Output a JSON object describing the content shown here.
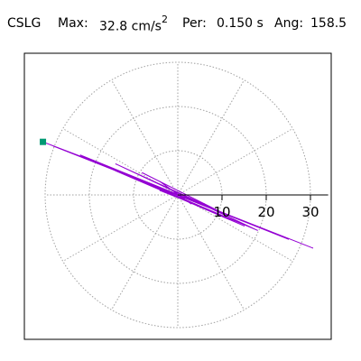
{
  "header": {
    "station": "CSLG",
    "max_label": "Max:",
    "max_value": "32.8 cm/s",
    "max_unit_sup": "2",
    "per_label": "Per:",
    "per_value": "0.150 s",
    "ang_label": "Ang:",
    "ang_value": "158.5"
  },
  "chart_data": {
    "type": "scatter",
    "title": "CSLG",
    "subtitle": "Max: 32.8 cm/s2 Per: 0.150 s Ang: 158.5",
    "xlabel": "",
    "ylabel": "",
    "radial_ticks": [
      10,
      20,
      30
    ],
    "radial_tick_labels": [
      "10",
      "20",
      "30"
    ],
    "radial_range": [
      0,
      34
    ],
    "angular_gridline_step_deg": 30,
    "grid": true,
    "max_amplitude": 32.8,
    "max_angle_deg": 158.5,
    "series": [
      {
        "style": "line",
        "color": "#9400d3",
        "points": [
          [
            0,
            0
          ],
          [
            3,
            -2
          ],
          [
            -4,
            3
          ],
          [
            6,
            -2
          ],
          [
            -8,
            5
          ],
          [
            10,
            -4
          ],
          [
            -14,
            7
          ],
          [
            18,
            -8
          ],
          [
            -22,
            9
          ],
          [
            25,
            -10
          ],
          [
            -28,
            11
          ],
          [
            30.5,
            -12
          ],
          [
            -30.5,
            12
          ],
          [
            -20,
            8
          ],
          [
            15,
            -7
          ],
          [
            -10,
            4
          ],
          [
            6,
            -3
          ],
          [
            -4,
            1
          ]
        ]
      },
      {
        "style": "marker",
        "color": "#009973",
        "points": [
          [
            -30.5,
            12
          ]
        ]
      }
    ]
  },
  "colors": {
    "trace": "#9400d3",
    "peak_marker": "#009973",
    "grid": "#a0a0a0",
    "axis": "#000000"
  }
}
